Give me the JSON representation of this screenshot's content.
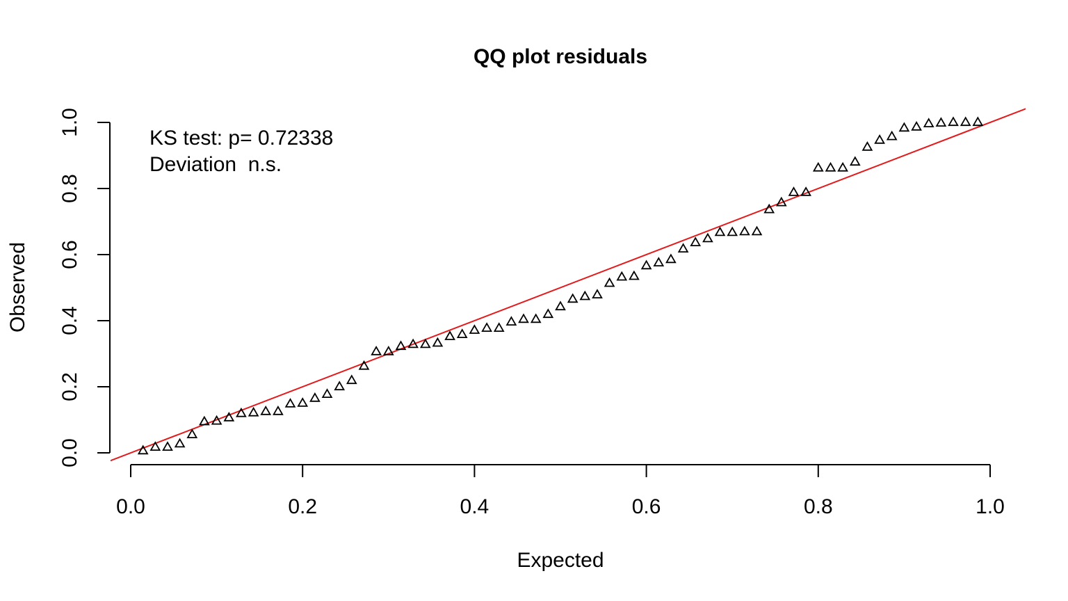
{
  "chart_data": {
    "type": "scatter",
    "title": "QQ plot residuals",
    "xlabel": "Expected",
    "ylabel": "Observed",
    "xlim": [
      0.0,
      1.0
    ],
    "ylim": [
      0.0,
      1.0
    ],
    "grid": false,
    "marker": "triangle",
    "x_ticks": [
      "0.0",
      "0.2",
      "0.4",
      "0.6",
      "0.8",
      "1.0"
    ],
    "y_ticks": [
      "0.0",
      "0.2",
      "0.4",
      "0.6",
      "0.8",
      "1.0"
    ],
    "annotations": [
      "KS test: p= 0.72338",
      "Deviation  n.s."
    ],
    "reference_line": {
      "slope": 1,
      "intercept": 0,
      "color": "#e31a1c"
    },
    "point_color": "#000000",
    "x": [
      0.0143,
      0.0286,
      0.0429,
      0.0571,
      0.0714,
      0.0857,
      0.1,
      0.1143,
      0.1286,
      0.1429,
      0.1571,
      0.1714,
      0.1857,
      0.2,
      0.2143,
      0.2286,
      0.2429,
      0.2571,
      0.2714,
      0.2857,
      0.3,
      0.3143,
      0.3286,
      0.3429,
      0.3571,
      0.3714,
      0.3857,
      0.4,
      0.4143,
      0.4286,
      0.4429,
      0.4571,
      0.4714,
      0.4857,
      0.5,
      0.5143,
      0.5286,
      0.5429,
      0.5571,
      0.5714,
      0.5857,
      0.6,
      0.6143,
      0.6286,
      0.6429,
      0.6571,
      0.6714,
      0.6857,
      0.7,
      0.7143,
      0.7286,
      0.7429,
      0.7571,
      0.7714,
      0.7857,
      0.8,
      0.8143,
      0.8286,
      0.8429,
      0.8571,
      0.8714,
      0.8857,
      0.9,
      0.9143,
      0.9286,
      0.9429,
      0.9571,
      0.9714,
      0.9857
    ],
    "y": [
      0.006,
      0.017,
      0.017,
      0.027,
      0.055,
      0.094,
      0.096,
      0.106,
      0.119,
      0.121,
      0.125,
      0.125,
      0.148,
      0.15,
      0.165,
      0.177,
      0.2,
      0.219,
      0.262,
      0.306,
      0.306,
      0.322,
      0.328,
      0.328,
      0.332,
      0.352,
      0.358,
      0.371,
      0.377,
      0.377,
      0.396,
      0.404,
      0.404,
      0.419,
      0.442,
      0.465,
      0.473,
      0.478,
      0.513,
      0.532,
      0.534,
      0.566,
      0.575,
      0.585,
      0.617,
      0.636,
      0.648,
      0.667,
      0.667,
      0.669,
      0.669,
      0.736,
      0.757,
      0.788,
      0.788,
      0.862,
      0.862,
      0.862,
      0.88,
      0.925,
      0.946,
      0.957,
      0.983,
      0.986,
      0.996,
      0.998,
      1.0,
      1.0,
      1.0
    ]
  }
}
